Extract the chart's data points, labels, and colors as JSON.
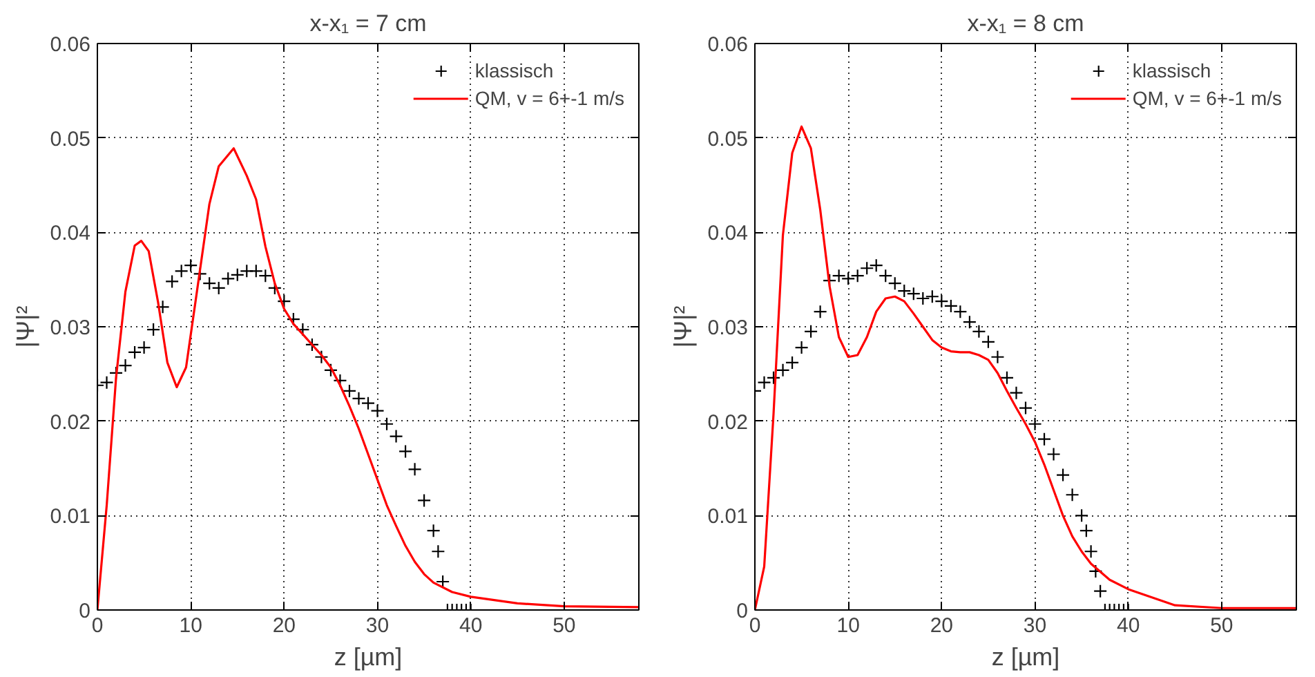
{
  "chart_data": [
    {
      "type": "line",
      "title": "x-x₁ = 7 cm",
      "xlabel": "z [µm]",
      "ylabel": "|Ψ|²",
      "xlim": [
        0,
        58
      ],
      "ylim": [
        0,
        0.06
      ],
      "xticks": [
        0,
        10,
        20,
        30,
        40,
        50
      ],
      "yticks": [
        0,
        0.01,
        0.02,
        0.03,
        0.04,
        0.05,
        0.06
      ],
      "grid": true,
      "legend": "top right",
      "series": [
        {
          "name": "klassisch",
          "type": "scatter",
          "marker": "cross",
          "color": "#000000",
          "x": [
            0,
            1,
            2,
            3,
            4,
            5,
            6,
            7,
            8,
            9,
            10,
            11,
            12,
            13,
            14,
            15,
            16,
            17,
            18,
            19,
            20,
            21,
            22,
            23,
            24,
            25,
            26,
            27,
            28,
            29,
            30,
            31,
            32,
            33,
            34,
            35,
            36,
            36.5,
            37,
            37.5,
            38,
            38.5,
            39,
            39.5,
            40
          ],
          "values": [
            0.0238,
            0.0241,
            0.0251,
            0.0259,
            0.0273,
            0.0278,
            0.0297,
            0.0321,
            0.0348,
            0.0359,
            0.0365,
            0.0356,
            0.0346,
            0.0341,
            0.0351,
            0.0355,
            0.0359,
            0.0359,
            0.0354,
            0.0341,
            0.0327,
            0.0308,
            0.0297,
            0.0281,
            0.0268,
            0.0254,
            0.0243,
            0.0232,
            0.0224,
            0.0219,
            0.0211,
            0.0197,
            0.0184,
            0.0168,
            0.0149,
            0.0116,
            0.0084,
            0.0062,
            0.003,
            0,
            0,
            0,
            0,
            0,
            0
          ]
        },
        {
          "name": "QM, v = 6+-1 m/s",
          "color": "#ff0000",
          "x": [
            0,
            1,
            2,
            3,
            4,
            4.7,
            5.5,
            6.5,
            7.5,
            8.5,
            9.5,
            10.5,
            12,
            13,
            14.6,
            16,
            17,
            18,
            19,
            20,
            21,
            22,
            23,
            24,
            25,
            26,
            27,
            28,
            29,
            30,
            31,
            32,
            33,
            34,
            35,
            36,
            38,
            40,
            45,
            50,
            58
          ],
          "values": [
            0,
            0.0111,
            0.0246,
            0.0337,
            0.0386,
            0.0391,
            0.038,
            0.0326,
            0.0262,
            0.0236,
            0.0257,
            0.0326,
            0.043,
            0.047,
            0.0489,
            0.046,
            0.0435,
            0.0385,
            0.0346,
            0.0319,
            0.0303,
            0.0292,
            0.0281,
            0.027,
            0.0257,
            0.0238,
            0.0216,
            0.0192,
            0.0165,
            0.0138,
            0.0111,
            0.0089,
            0.0068,
            0.0051,
            0.0038,
            0.0029,
            0.0019,
            0.0014,
            0.0007,
            0.0004,
            0.0003
          ]
        }
      ]
    },
    {
      "type": "line",
      "title": "x-x₁ = 8 cm",
      "xlabel": "z [µm]",
      "ylabel": "|Ψ|²",
      "xlim": [
        0,
        58
      ],
      "ylim": [
        0,
        0.06
      ],
      "xticks": [
        0,
        10,
        20,
        30,
        40,
        50
      ],
      "yticks": [
        0,
        0.01,
        0.02,
        0.03,
        0.04,
        0.05,
        0.06
      ],
      "grid": true,
      "legend": "top right",
      "series": [
        {
          "name": "klassisch",
          "type": "scatter",
          "marker": "cross",
          "color": "#000000",
          "x": [
            0,
            1,
            2,
            3,
            4,
            5,
            6,
            7,
            8,
            9,
            10,
            11,
            12,
            13,
            14,
            15,
            16,
            17,
            18,
            19,
            20,
            21,
            22,
            23,
            24,
            25,
            26,
            27,
            28,
            29,
            30,
            31,
            32,
            33,
            34,
            35,
            35.5,
            36,
            36.5,
            37,
            37.5,
            38,
            38.5,
            39,
            39.5,
            40
          ],
          "values": [
            0.0232,
            0.0241,
            0.0246,
            0.0254,
            0.0262,
            0.0278,
            0.0295,
            0.0316,
            0.0349,
            0.0354,
            0.0351,
            0.0354,
            0.0362,
            0.0365,
            0.0354,
            0.0346,
            0.0338,
            0.0335,
            0.033,
            0.0332,
            0.0327,
            0.0322,
            0.0316,
            0.0305,
            0.0295,
            0.0284,
            0.0268,
            0.0246,
            0.023,
            0.0214,
            0.0197,
            0.0181,
            0.0165,
            0.0143,
            0.0122,
            0.01,
            0.0084,
            0.0062,
            0.0041,
            0.002,
            0,
            0,
            0,
            0,
            0,
            0
          ]
        },
        {
          "name": "QM, v = 6+-1 m/s",
          "color": "#ff0000",
          "x": [
            0,
            1,
            2,
            3,
            4,
            5,
            6,
            7,
            8,
            9,
            10,
            11,
            12,
            13,
            14,
            15,
            16,
            17,
            18,
            19,
            20,
            21,
            22,
            23,
            24,
            25,
            26,
            27,
            28,
            29,
            30,
            31,
            32,
            33,
            34,
            35,
            36,
            38,
            40,
            45,
            50,
            58
          ],
          "values": [
            0,
            0.0046,
            0.0208,
            0.0397,
            0.0484,
            0.0512,
            0.0489,
            0.0424,
            0.0343,
            0.0289,
            0.0268,
            0.027,
            0.0289,
            0.0316,
            0.033,
            0.0332,
            0.0327,
            0.0314,
            0.03,
            0.0286,
            0.0278,
            0.0274,
            0.0273,
            0.0273,
            0.027,
            0.0265,
            0.0251,
            0.0232,
            0.0214,
            0.0197,
            0.0178,
            0.0154,
            0.0127,
            0.01,
            0.0078,
            0.0062,
            0.0049,
            0.0032,
            0.0022,
            0.0005,
            0.0002,
            0.0002
          ]
        }
      ]
    }
  ]
}
